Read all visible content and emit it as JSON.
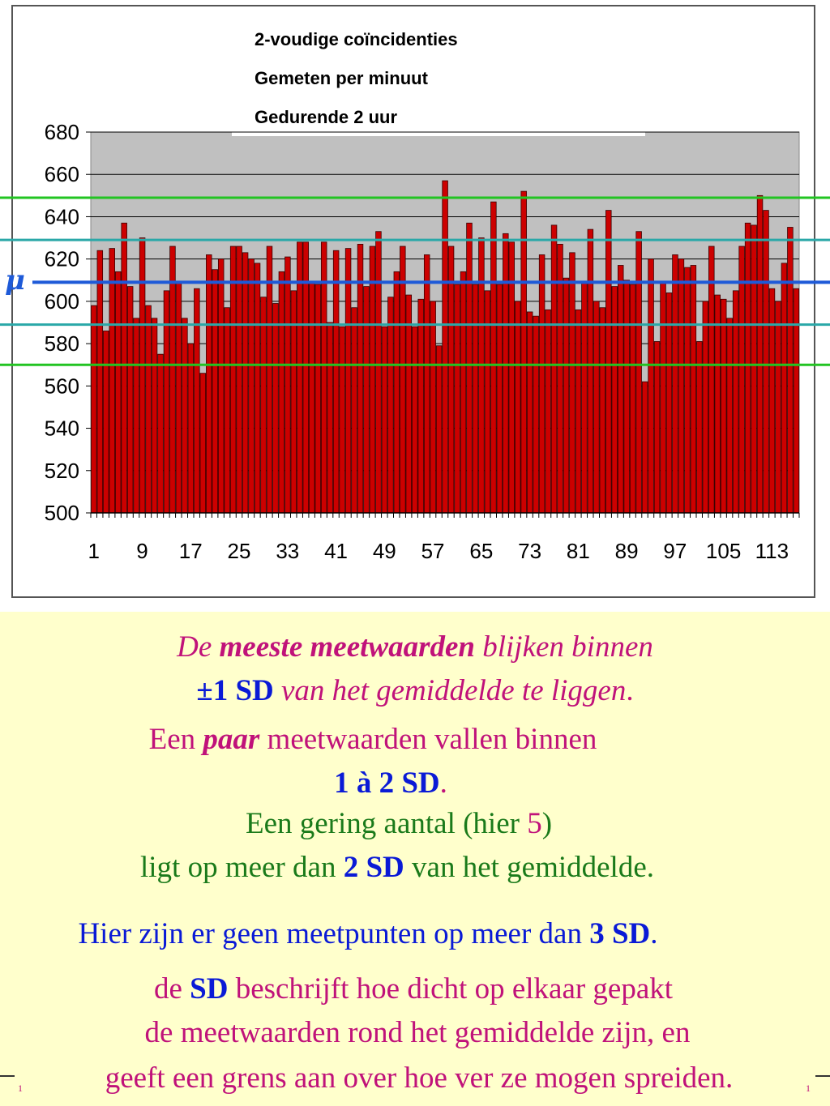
{
  "chart_data": {
    "type": "bar",
    "title_lines": [
      "2-voudige coïncidenties",
      "Gemeten per minuut",
      "Gedurende 2 uur"
    ],
    "ylim": [
      500,
      680
    ],
    "yticks": [
      "680",
      "660",
      "640",
      "620",
      "600",
      "580",
      "560",
      "540",
      "520",
      "500"
    ],
    "xticks": [
      "1",
      "9",
      "17",
      "25",
      "33",
      "41",
      "49",
      "57",
      "65",
      "73",
      "81",
      "89",
      "97",
      "105",
      "113"
    ],
    "mean_label": "μ",
    "mean": 609,
    "sd_lines": [
      649,
      629,
      589,
      570
    ],
    "colors": {
      "bar": "#cc0000",
      "plot_bg": "#c0c0c0",
      "mean_line": "#1e5ad8",
      "sd1_line": "#2aa8a8",
      "sd2_line": "#22c422"
    },
    "values": [
      598,
      624,
      586,
      625,
      614,
      637,
      607,
      592,
      630,
      598,
      592,
      575,
      605,
      626,
      609,
      592,
      580,
      606,
      566,
      622,
      615,
      620,
      597,
      626,
      626,
      623,
      620,
      618,
      602,
      626,
      599,
      614,
      621,
      605,
      628,
      628,
      609,
      608,
      628,
      590,
      624,
      588,
      625,
      597,
      627,
      607,
      626,
      633,
      588,
      602,
      614,
      626,
      603,
      588,
      601,
      622,
      600,
      579,
      657,
      626,
      608,
      614,
      637,
      608,
      630,
      605,
      647,
      608,
      632,
      628,
      600,
      652,
      595,
      593,
      622,
      596,
      636,
      627,
      611,
      623,
      596,
      609,
      634,
      600,
      597,
      643,
      607,
      617,
      610,
      608,
      633,
      562,
      620,
      581,
      609,
      604,
      622,
      620,
      616,
      617,
      581,
      600,
      626,
      603,
      601,
      592,
      605,
      626,
      637,
      636,
      650,
      643,
      606,
      600,
      618,
      635,
      606
    ]
  },
  "text": {
    "l1": {
      "a": "De ",
      "b": "meeste meetwaarden",
      "c": " blijken binnen"
    },
    "l2": {
      "a": "±1 SD",
      "b": " van het gemiddelde te liggen",
      "c": "."
    },
    "l3": {
      "a": "Een  ",
      "b": "paar",
      "c": " meetwaarden vallen binnen"
    },
    "l4": {
      "a": "1 à 2 SD",
      "b": "."
    },
    "l5": {
      "a": "Een gering aantal (hier ",
      "b": "5",
      "c": ")"
    },
    "l6": {
      "a": "ligt op meer dan ",
      "b": "2 SD",
      "c": " van het gemiddelde."
    },
    "l7": {
      "a": "Hier zijn er geen meetpunten op meer dan ",
      "b": "3 SD",
      "c": "."
    },
    "l8": {
      "a": "de ",
      "b": "SD",
      "c": " beschrijft hoe dicht op elkaar gepakt"
    },
    "l9": "de meetwaarden rond het gemiddelde zijn,  en",
    "l10": "geeft een grens aan over hoe ver ze mogen spreiden.",
    "corner_left": "1",
    "corner_right": "1"
  }
}
